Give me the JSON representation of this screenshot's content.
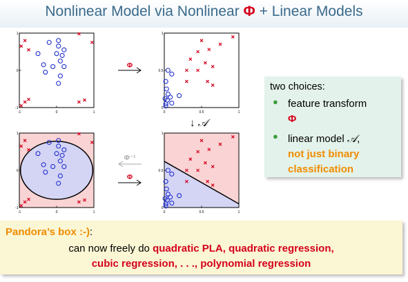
{
  "title": {
    "prefix": "Nonlinear Model via Nonlinear ",
    "phi": "Φ",
    "suffix": " + Linear Models"
  },
  "colors": {
    "title": "#3a6a8a",
    "red": "#d4001c",
    "orange": "#f08c00",
    "circle": "#2030d0",
    "cross": "#d4001c",
    "region_pos": "#fad4d4",
    "region_neg": "#d4d4f4",
    "choices_bg": "#e3f2ea",
    "pandora_bg": "#fbf6d4"
  },
  "operators": {
    "phi_top": "Φ",
    "phi_inv": "Φ⁻¹",
    "phi_bottom": "Φ",
    "down_arrow": "↓",
    "down_model": "𝒜"
  },
  "plots": {
    "x_space": {
      "xticks": [
        "-1",
        "0",
        "1"
      ],
      "yticks": [
        "1",
        "0",
        "-1"
      ],
      "xlim": [
        -1,
        1
      ],
      "ylim": [
        -1,
        1
      ],
      "circles": [
        [
          -0.2,
          0.75
        ],
        [
          0.05,
          0.65
        ],
        [
          0.2,
          0.55
        ],
        [
          -0.5,
          0.45
        ],
        [
          0.0,
          0.45
        ],
        [
          0.15,
          0.4
        ],
        [
          0.1,
          0.25
        ],
        [
          -0.35,
          0.15
        ],
        [
          -0.1,
          0.1
        ],
        [
          0.2,
          0.1
        ],
        [
          0.1,
          -0.15
        ],
        [
          -0.3,
          -0.05
        ],
        [
          0.05,
          -0.35
        ],
        [
          0.05,
          0.8
        ]
      ],
      "crosses": [
        [
          -0.85,
          0.8
        ],
        [
          -0.95,
          0.65
        ],
        [
          -0.75,
          0.55
        ],
        [
          0.6,
          0.98
        ],
        [
          0.95,
          0.75
        ],
        [
          -0.85,
          -0.85
        ],
        [
          -0.75,
          -0.78
        ],
        [
          -0.95,
          -0.95
        ],
        [
          0.6,
          -0.85
        ],
        [
          0.75,
          -0.8
        ]
      ]
    },
    "z_space": {
      "xticks": [
        "0",
        "0.5",
        "1"
      ],
      "yticks": [
        "1",
        "0.5",
        "0"
      ],
      "xlim": [
        0,
        1
      ],
      "ylim": [
        0,
        1
      ],
      "circles": [
        [
          0.05,
          0.5
        ],
        [
          0.02,
          0.35
        ],
        [
          0.1,
          0.45
        ],
        [
          0.03,
          0.25
        ],
        [
          0.05,
          0.18
        ],
        [
          0.04,
          0.1
        ],
        [
          0.02,
          0.05
        ],
        [
          0.1,
          0.06
        ],
        [
          0.2,
          0.16
        ],
        [
          0.08,
          0.14
        ],
        [
          0.01,
          0.12
        ],
        [
          0.02,
          0.02
        ]
      ],
      "crosses": [
        [
          0.5,
          0.9
        ],
        [
          0.75,
          0.85
        ],
        [
          0.92,
          0.95
        ],
        [
          0.45,
          0.75
        ],
        [
          0.6,
          0.78
        ],
        [
          0.35,
          0.65
        ],
        [
          0.55,
          0.6
        ],
        [
          0.65,
          0.55
        ],
        [
          0.3,
          0.5
        ],
        [
          0.45,
          0.5
        ],
        [
          0.65,
          0.3
        ],
        [
          0.58,
          0.35
        ],
        [
          0.3,
          0.35
        ]
      ]
    },
    "z_classified": {
      "xticks": [
        "0",
        "0.5",
        "1"
      ],
      "yticks": [
        "1",
        "0.5",
        "0"
      ],
      "xlim": [
        0,
        1
      ],
      "ylim": [
        0,
        1
      ],
      "boundary": [
        [
          0,
          0.62
        ],
        [
          1,
          0.05
        ]
      ],
      "circles": [
        [
          0.05,
          0.5
        ],
        [
          0.02,
          0.35
        ],
        [
          0.1,
          0.45
        ],
        [
          0.03,
          0.25
        ],
        [
          0.05,
          0.18
        ],
        [
          0.04,
          0.1
        ],
        [
          0.02,
          0.05
        ],
        [
          0.1,
          0.06
        ],
        [
          0.2,
          0.16
        ],
        [
          0.08,
          0.14
        ],
        [
          0.01,
          0.12
        ],
        [
          0.02,
          0.02
        ]
      ],
      "crosses": [
        [
          0.5,
          0.9
        ],
        [
          0.75,
          0.85
        ],
        [
          0.92,
          0.95
        ],
        [
          0.45,
          0.75
        ],
        [
          0.6,
          0.78
        ],
        [
          0.35,
          0.65
        ],
        [
          0.55,
          0.6
        ],
        [
          0.65,
          0.55
        ],
        [
          0.3,
          0.5
        ],
        [
          0.45,
          0.5
        ],
        [
          0.65,
          0.3
        ],
        [
          0.58,
          0.35
        ],
        [
          0.3,
          0.35
        ]
      ]
    },
    "x_classified": {
      "xticks": [
        "-1",
        "0",
        "1"
      ],
      "yticks": [
        "1",
        "0",
        "-1"
      ],
      "xlim": [
        -1,
        1
      ],
      "ylim": [
        -1,
        1
      ],
      "ellipse": {
        "cx": 0.0,
        "cy": 0.0,
        "rx": 0.97,
        "ry": 0.78
      },
      "circles": [
        [
          -0.2,
          0.75
        ],
        [
          0.05,
          0.65
        ],
        [
          0.2,
          0.55
        ],
        [
          -0.5,
          0.45
        ],
        [
          0.0,
          0.45
        ],
        [
          0.15,
          0.4
        ],
        [
          0.1,
          0.25
        ],
        [
          -0.35,
          0.15
        ],
        [
          -0.1,
          0.1
        ],
        [
          0.2,
          0.1
        ],
        [
          0.1,
          -0.15
        ],
        [
          -0.3,
          -0.05
        ],
        [
          0.05,
          -0.35
        ],
        [
          0.05,
          0.8
        ]
      ],
      "crosses": [
        [
          -0.85,
          0.8
        ],
        [
          -0.95,
          0.65
        ],
        [
          -0.75,
          0.55
        ],
        [
          0.6,
          0.98
        ],
        [
          0.95,
          0.75
        ],
        [
          -0.85,
          -0.85
        ],
        [
          -0.75,
          -0.78
        ],
        [
          -0.95,
          -0.95
        ],
        [
          0.6,
          -0.85
        ],
        [
          0.75,
          -0.8
        ]
      ]
    }
  },
  "choices": {
    "head": "two choices:",
    "b1_text": "feature transform",
    "b1_phi": "Φ",
    "b2_text": "linear model ",
    "b2_A": "𝒜",
    "b2_comma": ",",
    "b2_highlight_1": "not just binary",
    "b2_highlight_2": "classification"
  },
  "pandora": {
    "head": "Pandora’s box :-)",
    "colon": ":",
    "line1_prefix": "can now freely do ",
    "line1_highlight": "quadratic PLA, quadratic regression,",
    "line2_highlight": "cubic regression, . . ., polynomial regression"
  }
}
